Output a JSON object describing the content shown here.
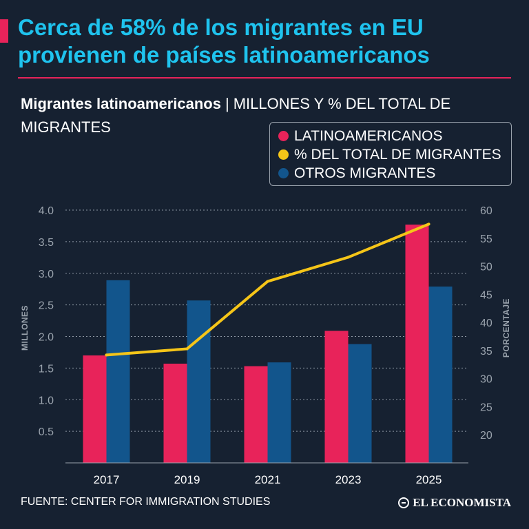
{
  "header": {
    "headline": "Cerca de 58% de los migrantes en EU provienen de países latinoamericanos",
    "subtitle_bold": "Migrantes latinoamericanos",
    "subtitle_sep": "|",
    "subtitle_units": "MILLONES Y % DEL TOTAL DE MIGRANTES"
  },
  "colors": {
    "background": "#162131",
    "latin": "#e8235a",
    "percent": "#f5c518",
    "others": "#12558c",
    "headline": "#1fc3ee"
  },
  "legend": {
    "items": [
      {
        "label": "LATINOAMERICANOS",
        "color": "#e8235a"
      },
      {
        "label": "% DEL TOTAL DE MIGRANTES",
        "color": "#f5c518"
      },
      {
        "label": "OTROS MIGRANTES",
        "color": "#12558c"
      }
    ]
  },
  "chart_data": {
    "type": "bar",
    "categories": [
      "2017",
      "2019",
      "2021",
      "2023",
      "2025"
    ],
    "series": [
      {
        "name": "LATINOAMERICANOS",
        "type": "bar",
        "axis": "left",
        "values": [
          1.7,
          1.57,
          1.53,
          2.09,
          3.77
        ]
      },
      {
        "name": "OTROS MIGRANTES",
        "type": "bar",
        "axis": "left",
        "values": [
          2.89,
          2.57,
          1.59,
          1.88,
          2.79
        ]
      },
      {
        "name": "% DEL TOTAL DE MIGRANTES",
        "type": "line",
        "axis": "right",
        "values": [
          34.2,
          35.3,
          47.3,
          51.6,
          57.5
        ]
      }
    ],
    "ylabel": "MILLONES",
    "y2label": "PORCENTAJE",
    "ylim": [
      0,
      4.0
    ],
    "y2lim": [
      15,
      60
    ],
    "yticks": [
      "0.5",
      "1.0",
      "1.5",
      "2.0",
      "2.5",
      "3.0",
      "3.5",
      "4.0"
    ],
    "y2ticks": [
      "20",
      "25",
      "30",
      "35",
      "40",
      "45",
      "50",
      "55",
      "60"
    ],
    "grid": true
  },
  "footer": {
    "source": "FUENTE: CENTER FOR IMMIGRATION STUDIES",
    "brand": "EL ECONOMISTA"
  }
}
